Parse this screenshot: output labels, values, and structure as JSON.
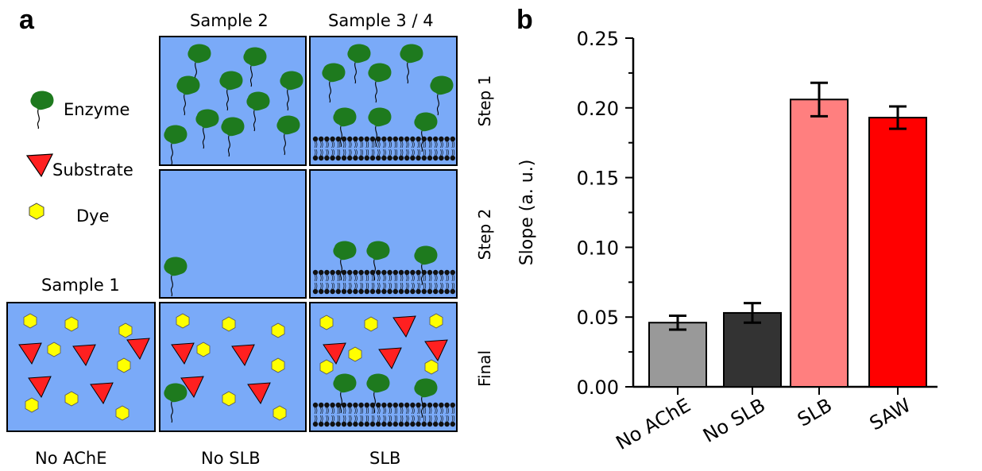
{
  "panel_a": {
    "letter": "a",
    "column_headers": [
      "Sample 2",
      "Sample 3 / 4"
    ],
    "sample1_header": "Sample 1",
    "row_labels": [
      "Step 1",
      "Step 2",
      "Final"
    ],
    "bottom_labels": [
      "No AChE",
      "No SLB",
      "SLB"
    ],
    "legend": [
      {
        "label": "Enzyme",
        "icon": "enzyme-icon",
        "color": "#1e7a1e"
      },
      {
        "label": "Substrate",
        "icon": "substrate-triangle-icon",
        "color": "#ff2020"
      },
      {
        "label": "Dye",
        "icon": "dye-hexagon-icon",
        "color": "#ffff00"
      }
    ],
    "colors": {
      "medium": "#7aaaf8",
      "enzyme": "#1e7a1e",
      "substrate": "#ff2020",
      "dye": "#ffff00",
      "lipid": "#111111"
    }
  },
  "panel_b": {
    "letter": "b",
    "chart_data": {
      "type": "bar",
      "categories": [
        "No AChE",
        "No SLB",
        "SLB",
        "SAW"
      ],
      "values": [
        0.046,
        0.053,
        0.206,
        0.193
      ],
      "errors": [
        0.005,
        0.007,
        0.012,
        0.008
      ],
      "colors": [
        "#999999",
        "#333333",
        "#ff7f7f",
        "#ff0000"
      ],
      "ylabel": "Slope (a. u.)",
      "xlabel": "",
      "ylim": [
        0,
        0.25
      ],
      "yticks": [
        "0.00",
        "0.05",
        "0.10",
        "0.15",
        "0.20",
        "0.25"
      ],
      "grid": false
    }
  }
}
